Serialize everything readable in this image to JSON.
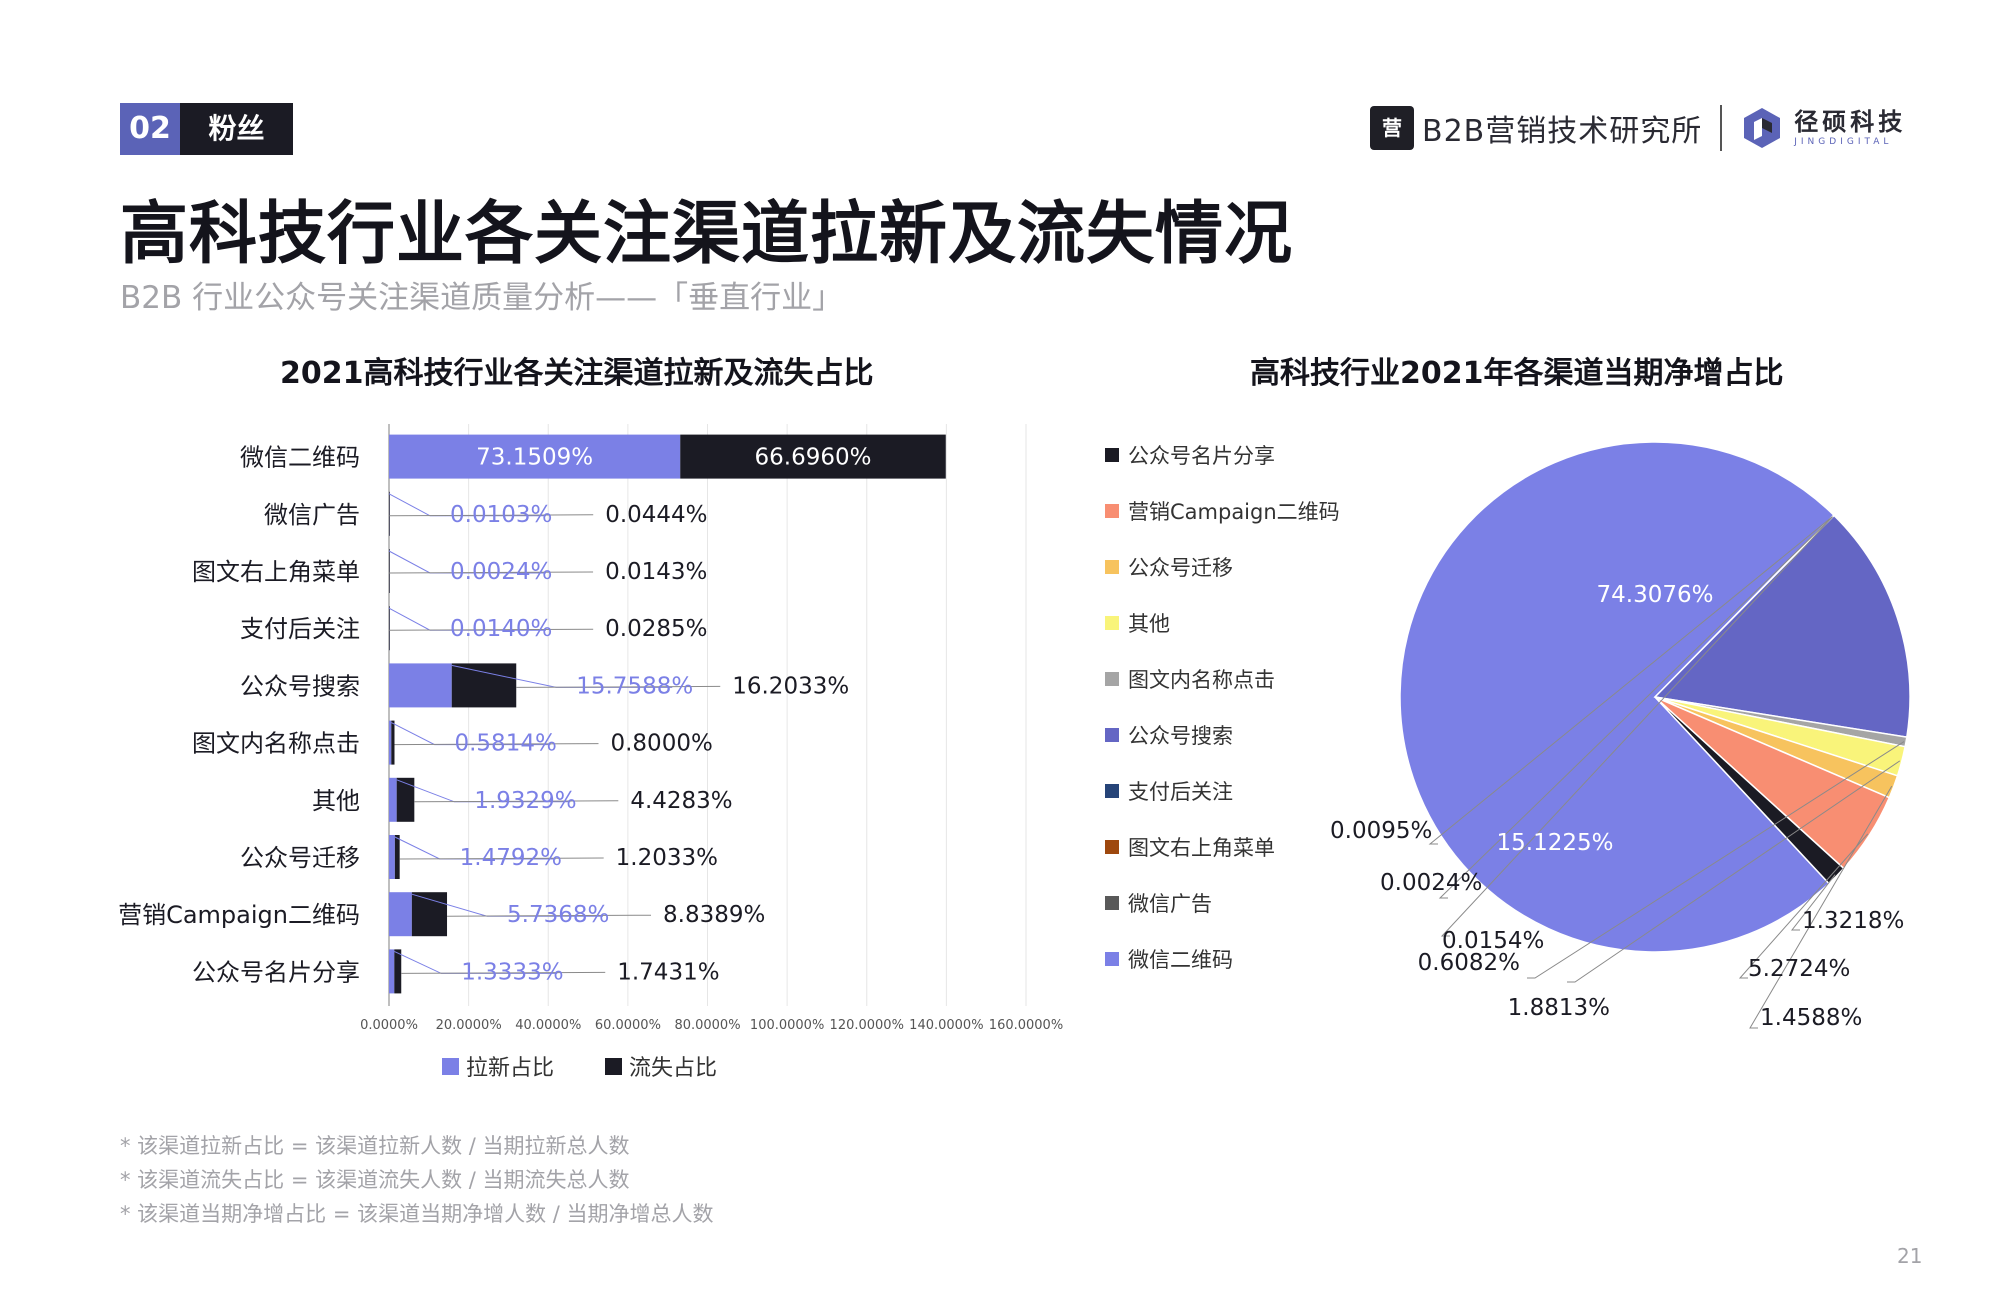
{
  "section": {
    "number": "02",
    "label": "粉丝"
  },
  "title": "高科技行业各关注渠道拉新及流失情况",
  "subtitle": "B2B 行业公众号关注渠道质量分析——「垂直行业」",
  "logos": {
    "b2b_icon": "营",
    "b2b_text": "B2B营销技术研究所",
    "jing_cn": "径硕科技",
    "jing_en": "JINGDIGITAL"
  },
  "footnotes": [
    "* 该渠道拉新占比 = 该渠道拉新人数 / 当期拉新总人数",
    "* 该渠道流失占比 = 该渠道流失人数 / 当期流失总人数",
    "* 该渠道当期净增占比 = 该渠道当期净增人数 / 当期净增总人数"
  ],
  "page_number": "21",
  "colors": {
    "new": "#7b80e6",
    "loss": "#1b1b24",
    "new_label": "#7b80e6",
    "brand": "#5b63b7"
  },
  "chart_data": [
    {
      "type": "bar",
      "orientation": "horizontal",
      "stacked": true,
      "title": "2021高科技行业各关注渠道拉新及流失占比",
      "categories": [
        "微信二维码",
        "微信广告",
        "图文右上角菜单",
        "支付后关注",
        "公众号搜索",
        "图文内名称点击",
        "其他",
        "公众号迁移",
        "营销Campaign二维码",
        "公众号名片分享"
      ],
      "series": [
        {
          "name": "拉新占比",
          "color": "#7b80e6",
          "values": [
            73.1509,
            0.0103,
            0.0024,
            0.014,
            15.7588,
            0.5814,
            1.9329,
            1.4792,
            5.7368,
            1.3333
          ],
          "labels": [
            "73.1509%",
            "0.0103%",
            "0.0024%",
            "0.0140%",
            "15.7588%",
            "0.5814%",
            "1.9329%",
            "1.4792%",
            "5.7368%",
            "1.3333%"
          ]
        },
        {
          "name": "流失占比",
          "color": "#1b1b24",
          "values": [
            66.696,
            0.0444,
            0.0143,
            0.0285,
            16.2033,
            0.8,
            4.4283,
            1.2033,
            8.8389,
            1.7431
          ],
          "labels": [
            "66.6960%",
            "0.0444%",
            "0.0143%",
            "0.0285%",
            "16.2033%",
            "0.8000%",
            "4.4283%",
            "1.2033%",
            "8.8389%",
            "1.7431%"
          ]
        }
      ],
      "xlim": [
        0,
        160
      ],
      "xticks": [
        "0.0000%",
        "20.0000%",
        "40.0000%",
        "60.0000%",
        "80.0000%",
        "100.0000%",
        "120.0000%",
        "140.0000%",
        "160.0000%"
      ],
      "grid": true,
      "legend": "bottom"
    },
    {
      "type": "pie",
      "title": "高科技行业2021年各渠道当期净增占比",
      "legend": "left",
      "legend_items": [
        "公众号名片分享",
        "营销Campaign二维码",
        "公众号迁移",
        "其他",
        "图文内名称点击",
        "公众号搜索",
        "支付后关注",
        "图文右上角菜单",
        "微信广告",
        "微信二维码"
      ],
      "slices": [
        {
          "name": "微信二维码",
          "value": 74.3076,
          "label": "74.3076%",
          "color": "#7b80e6"
        },
        {
          "name": "微信广告",
          "value": 0.0095,
          "label": "0.0095%",
          "color": "#595959"
        },
        {
          "name": "图文右上角菜单",
          "value": 0.0024,
          "label": "0.0024%",
          "color": "#9e480e"
        },
        {
          "name": "支付后关注",
          "value": 0.0154,
          "label": "0.0154%",
          "color": "#264478"
        },
        {
          "name": "公众号搜索",
          "value": 15.1225,
          "label": "15.1225%",
          "color": "#6466c4"
        },
        {
          "name": "图文内名称点击",
          "value": 0.6082,
          "label": "0.6082%",
          "color": "#a5a5a5"
        },
        {
          "name": "其他",
          "value": 1.8813,
          "label": "1.8813%",
          "color": "#f9f47a"
        },
        {
          "name": "公众号迁移",
          "value": 1.4588,
          "label": "1.4588%",
          "color": "#f7c35e"
        },
        {
          "name": "营销Campaign二维码",
          "value": 5.2724,
          "label": "5.2724%",
          "color": "#f88e72"
        },
        {
          "name": "公众号名片分享",
          "value": 1.3218,
          "label": "1.3218%",
          "color": "#1b1b24"
        }
      ]
    }
  ]
}
